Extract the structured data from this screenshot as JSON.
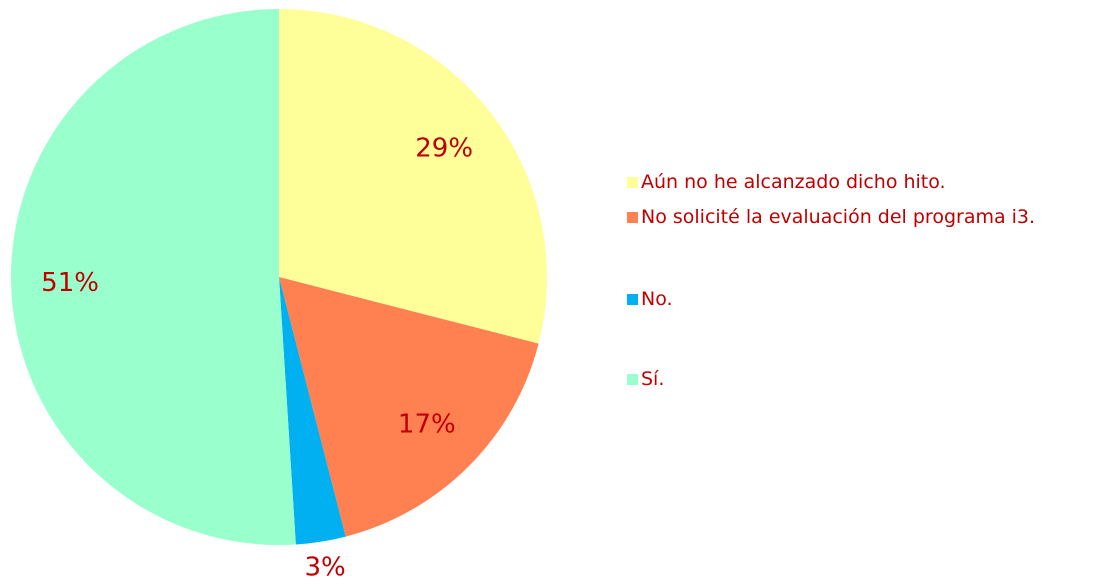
{
  "chart_data": {
    "type": "pie",
    "categories": [
      "Aún no he alcanzado dicho hito.",
      "No solicité la evaluación del programa i3.",
      "No.",
      "Sí."
    ],
    "values": [
      29,
      17,
      3,
      51
    ],
    "value_labels": [
      "29%",
      "17%",
      "3%",
      "51%"
    ],
    "colors": [
      "#FFFF99",
      "#FF8050",
      "#00B0F0",
      "#99FFCC"
    ],
    "legend": "right"
  }
}
